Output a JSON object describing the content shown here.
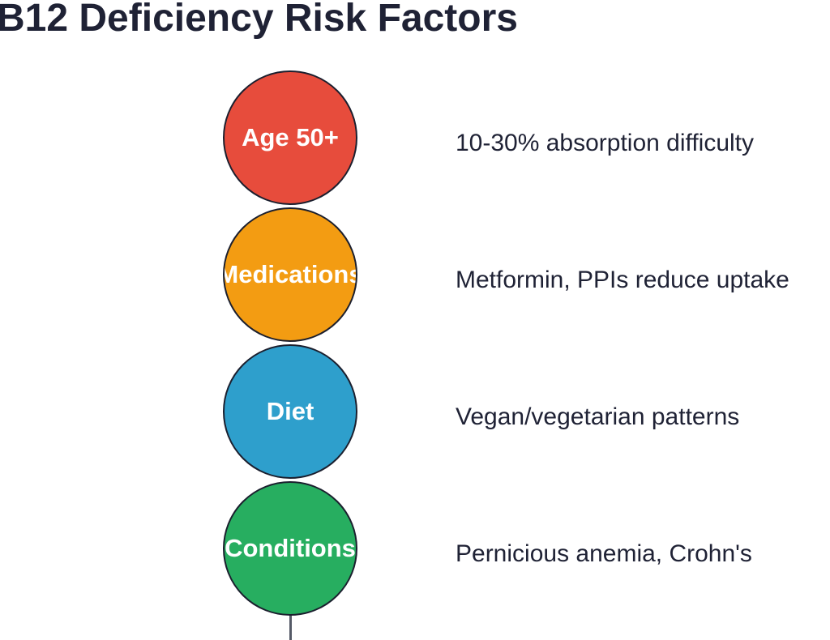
{
  "title": "B12 Deficiency Risk Factors",
  "factors": [
    {
      "label": "Age 50+",
      "description": "10-30% absorption difficulty",
      "color": "#e74c3c"
    },
    {
      "label": "Medications",
      "description": "Metformin, PPIs reduce uptake",
      "color": "#f39c12"
    },
    {
      "label": "Diet",
      "description": "Vegan/vegetarian patterns",
      "color": "#2e9fcc"
    },
    {
      "label": "Conditions",
      "description": "Pernicious anemia, Crohn's",
      "color": "#27ae60"
    }
  ]
}
